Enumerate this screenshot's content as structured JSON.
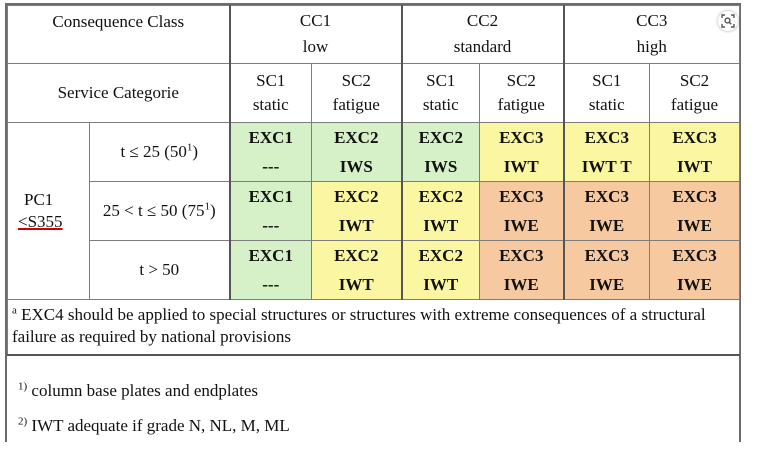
{
  "header": {
    "consequence_label": "Consequence Class",
    "service_label": "Service Categorie",
    "classes": [
      {
        "code": "CC1",
        "name": "low"
      },
      {
        "code": "CC2",
        "name": "standard"
      },
      {
        "code": "CC3",
        "name": "high"
      }
    ],
    "service_cats": [
      {
        "code": "SC1",
        "name": "static"
      },
      {
        "code": "SC2",
        "name": "fatigue"
      },
      {
        "code": "SC1",
        "name": "static"
      },
      {
        "code": "SC2",
        "name": "fatigue"
      },
      {
        "code": "SC1",
        "name": "static"
      },
      {
        "code": "SC2",
        "name": "fatigue"
      }
    ]
  },
  "pc": {
    "line1": "PC1",
    "line2": "<S355"
  },
  "rows": [
    {
      "thickness": "t ≤ 25 (50",
      "thickness_sup": "1",
      "thickness_end": ")",
      "cells": [
        {
          "exc": "EXC1",
          "sub": "---"
        },
        {
          "exc": "EXC2",
          "sub": "IWS"
        },
        {
          "exc": "EXC2",
          "sub": "IWS"
        },
        {
          "exc": "EXC3",
          "sub": "IWT"
        },
        {
          "exc": "EXC3",
          "sub": "IWT T"
        },
        {
          "exc": "EXC3",
          "sub": "IWT"
        }
      ]
    },
    {
      "thickness": "25 < t ≤ 50 (75",
      "thickness_sup": "1",
      "thickness_end": ")",
      "cells": [
        {
          "exc": "EXC1",
          "sub": "---"
        },
        {
          "exc": "EXC2",
          "sub": "IWT"
        },
        {
          "exc": "EXC2",
          "sub": "IWT"
        },
        {
          "exc": "EXC3",
          "sub": "IWE"
        },
        {
          "exc": "EXC3",
          "sub": "IWE"
        },
        {
          "exc": "EXC3",
          "sub": "IWE"
        }
      ]
    },
    {
      "thickness": "t > 50",
      "thickness_sup": "",
      "thickness_end": "",
      "cells": [
        {
          "exc": "EXC1",
          "sub": "---"
        },
        {
          "exc": "EXC2",
          "sub": "IWT"
        },
        {
          "exc": "EXC2",
          "sub": "IWT"
        },
        {
          "exc": "EXC3",
          "sub": "IWE"
        },
        {
          "exc": "EXC3",
          "sub": "IWE"
        },
        {
          "exc": "EXC3",
          "sub": "IWE"
        }
      ]
    }
  ],
  "note": {
    "marker": "a",
    "text": " EXC4 should be applied to special structures or structures with extreme consequences of a structural failure as required by national provisions"
  },
  "footnotes": [
    {
      "marker": "1)",
      "text": " column base plates and endplates"
    },
    {
      "marker": "2)",
      "text": " IWT adequate if grade N, NL, M, ML"
    }
  ],
  "colors": {
    "green": "#d6f1c7",
    "yellow": "#fbf6a1",
    "orange": "#f6c9a0"
  },
  "icons": {
    "corner": "visual-search-icon"
  }
}
